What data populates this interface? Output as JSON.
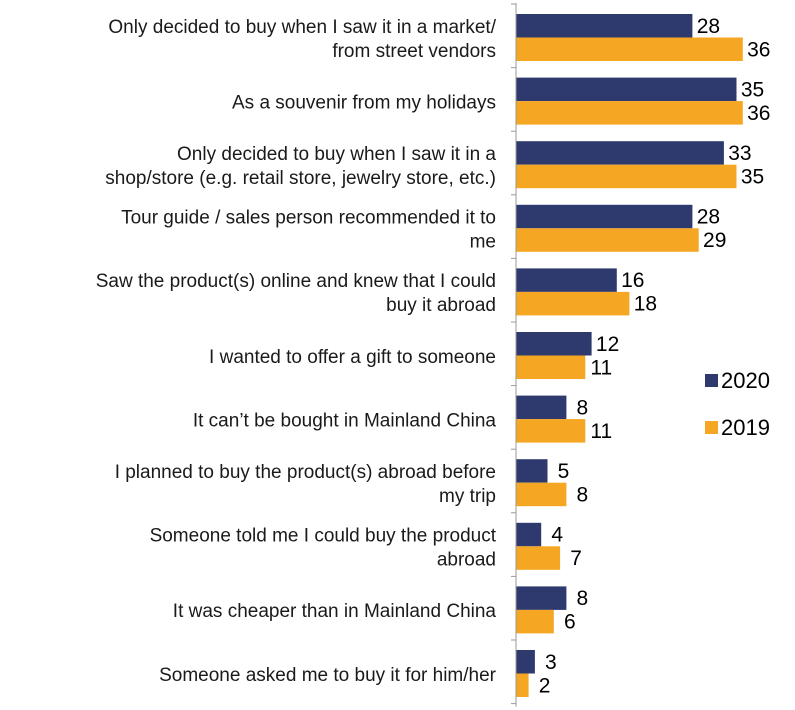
{
  "chart_data": {
    "type": "bar",
    "orientation": "horizontal",
    "title": "",
    "xlabel": "",
    "ylabel": "",
    "grid": false,
    "legend_position": "right",
    "categories": [
      [
        "Only decided to buy when I saw it in a market/",
        "from street vendors"
      ],
      [
        "As a souvenir from my holidays"
      ],
      [
        "Only decided to buy when I saw it in a",
        "shop/store (e.g. retail store, jewelry store, etc.)"
      ],
      [
        "Tour guide / sales person recommended it to",
        "me"
      ],
      [
        "Saw the product(s) online and knew that I could",
        "buy it abroad"
      ],
      [
        "I wanted to offer a gift to someone"
      ],
      [
        "It can’t be bought in Mainland China"
      ],
      [
        "I planned to buy the product(s) abroad before",
        "my trip"
      ],
      [
        "Someone told me I could buy the product",
        "abroad"
      ],
      [
        "It was cheaper than in Mainland China"
      ],
      [
        "Someone asked me to buy it for him/her"
      ]
    ],
    "series": [
      {
        "name": "2020",
        "color": "#2e3a6e",
        "values": [
          28,
          35,
          33,
          28,
          16,
          12,
          8,
          5,
          4,
          8,
          3
        ]
      },
      {
        "name": "2019",
        "color": "#f5a623",
        "values": [
          36,
          36,
          35,
          29,
          18,
          11,
          11,
          8,
          7,
          6,
          2
        ]
      }
    ],
    "xlim": [
      0,
      40
    ]
  }
}
